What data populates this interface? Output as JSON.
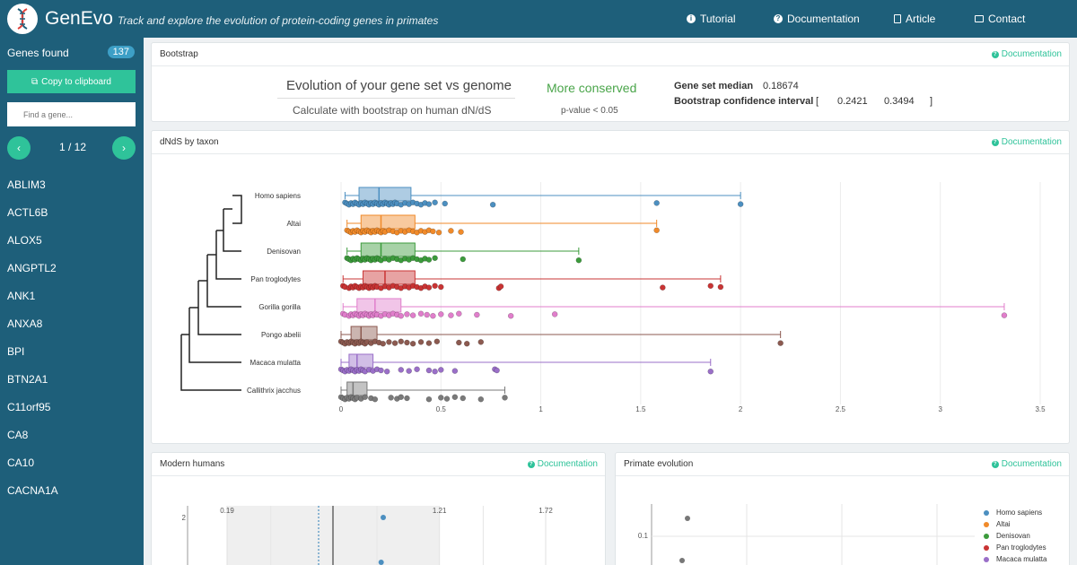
{
  "header": {
    "brand": "GenEvo",
    "tagline": "Track and explore the evolution of protein-coding genes in primates",
    "nav": [
      "Tutorial",
      "Documentation",
      "Article",
      "Contact"
    ]
  },
  "sidebar": {
    "genes_found_label": "Genes found",
    "genes_count": "137",
    "copy_label": "Copy to clipboard",
    "search_placeholder": "Find a gene...",
    "prev": "‹",
    "next": "›",
    "page": "1 / 12",
    "genes": [
      "ABLIM3",
      "ACTL6B",
      "ALOX5",
      "ANGPTL2",
      "ANK1",
      "ANXA8",
      "BPI",
      "BTN2A1",
      "C11orf95",
      "CA8",
      "CA10",
      "CACNA1A"
    ]
  },
  "bootstrap": {
    "title": "Bootstrap",
    "doc": "Documentation",
    "heading": "Evolution of your gene set vs genome",
    "subheading": "Calculate with bootstrap on human dN/dS",
    "verdict": "More conserved",
    "pvalue": "p-value < 0.05",
    "median_label": "Gene set median",
    "median_value": "0.18674",
    "ci_label": "Bootstrap confidence interval",
    "ci_open": "[",
    "ci_low": "0.2421",
    "ci_high": "0.3494",
    "ci_close": "]"
  },
  "dnds_panel": {
    "title": "dNdS by taxon",
    "doc": "Documentation"
  },
  "modern_panel": {
    "title": "Modern humans",
    "doc": "Documentation"
  },
  "primate_panel": {
    "title": "Primate evolution",
    "doc": "Documentation"
  },
  "colors": {
    "Homo sapiens": "#4c8fc0",
    "Altai": "#f08a2a",
    "Denisovan": "#3c9b3c",
    "Pan troglodytes": "#c93434",
    "Gorilla gorilla": "#e07ecb",
    "Pongo abelii": "#8c5a50",
    "Macaca mulatta": "#9a6fc8",
    "Callithrix jacchus": "#7a7a7a"
  },
  "chart_data": [
    {
      "type": "box",
      "title": "dNdS by taxon",
      "x_ticks": [
        "0",
        "0.5",
        "1",
        "1.5",
        "2",
        "2.5",
        "3",
        "3.5"
      ],
      "xlim": [
        0,
        3.5
      ],
      "grid": true,
      "series": [
        {
          "name": "Homo sapiens",
          "whisker_low": 0.02,
          "q1": 0.09,
          "median": 0.19,
          "q3": 0.35,
          "whisker_high": 2.0,
          "points": [
            0.02,
            0.03,
            0.04,
            0.05,
            0.06,
            0.07,
            0.08,
            0.09,
            0.1,
            0.11,
            0.12,
            0.13,
            0.14,
            0.15,
            0.16,
            0.17,
            0.18,
            0.19,
            0.2,
            0.21,
            0.22,
            0.23,
            0.24,
            0.25,
            0.26,
            0.27,
            0.28,
            0.3,
            0.32,
            0.34,
            0.36,
            0.38,
            0.4,
            0.42,
            0.44,
            0.47,
            0.52,
            0.76,
            1.58,
            2.0
          ]
        },
        {
          "name": "Altai",
          "whisker_low": 0.03,
          "q1": 0.1,
          "median": 0.2,
          "q3": 0.37,
          "whisker_high": 1.58,
          "points": [
            0.03,
            0.04,
            0.05,
            0.06,
            0.07,
            0.08,
            0.09,
            0.1,
            0.11,
            0.12,
            0.13,
            0.14,
            0.15,
            0.16,
            0.17,
            0.18,
            0.19,
            0.2,
            0.21,
            0.22,
            0.24,
            0.26,
            0.28,
            0.3,
            0.32,
            0.34,
            0.36,
            0.38,
            0.4,
            0.42,
            0.44,
            0.46,
            0.49,
            0.55,
            0.6,
            1.58
          ]
        },
        {
          "name": "Denisovan",
          "whisker_low": 0.03,
          "q1": 0.1,
          "median": 0.2,
          "q3": 0.37,
          "whisker_high": 1.19,
          "points": [
            0.03,
            0.04,
            0.05,
            0.06,
            0.07,
            0.08,
            0.09,
            0.1,
            0.11,
            0.12,
            0.13,
            0.14,
            0.15,
            0.16,
            0.17,
            0.18,
            0.19,
            0.2,
            0.22,
            0.24,
            0.26,
            0.28,
            0.3,
            0.32,
            0.34,
            0.36,
            0.38,
            0.4,
            0.42,
            0.44,
            0.47,
            0.61,
            1.19
          ]
        },
        {
          "name": "Pan troglodytes",
          "whisker_low": 0.01,
          "q1": 0.11,
          "median": 0.22,
          "q3": 0.37,
          "whisker_high": 1.9,
          "points": [
            0.01,
            0.02,
            0.04,
            0.05,
            0.06,
            0.07,
            0.08,
            0.09,
            0.1,
            0.11,
            0.12,
            0.13,
            0.14,
            0.15,
            0.16,
            0.17,
            0.18,
            0.2,
            0.22,
            0.24,
            0.26,
            0.28,
            0.3,
            0.32,
            0.34,
            0.36,
            0.38,
            0.4,
            0.42,
            0.44,
            0.47,
            0.5,
            0.79,
            0.8,
            1.61,
            1.85,
            1.9
          ]
        },
        {
          "name": "Gorilla gorilla",
          "whisker_low": 0.01,
          "q1": 0.08,
          "median": 0.17,
          "q3": 0.3,
          "whisker_high": 3.32,
          "points": [
            0.01,
            0.02,
            0.04,
            0.05,
            0.06,
            0.07,
            0.08,
            0.09,
            0.1,
            0.11,
            0.12,
            0.13,
            0.14,
            0.15,
            0.16,
            0.17,
            0.18,
            0.2,
            0.22,
            0.24,
            0.26,
            0.28,
            0.3,
            0.33,
            0.36,
            0.4,
            0.43,
            0.46,
            0.5,
            0.55,
            0.59,
            0.68,
            0.85,
            1.07,
            3.32
          ]
        },
        {
          "name": "Pongo abelii",
          "whisker_low": 0.0,
          "q1": 0.05,
          "median": 0.1,
          "q3": 0.18,
          "whisker_high": 2.2,
          "points": [
            0.0,
            0.01,
            0.02,
            0.03,
            0.04,
            0.05,
            0.06,
            0.07,
            0.08,
            0.09,
            0.1,
            0.11,
            0.12,
            0.13,
            0.15,
            0.17,
            0.19,
            0.21,
            0.24,
            0.27,
            0.3,
            0.33,
            0.36,
            0.4,
            0.44,
            0.48,
            0.59,
            0.63,
            0.7,
            2.2
          ]
        },
        {
          "name": "Macaca mulatta",
          "whisker_low": 0.0,
          "q1": 0.04,
          "median": 0.08,
          "q3": 0.16,
          "whisker_high": 1.85,
          "points": [
            0.0,
            0.01,
            0.02,
            0.03,
            0.04,
            0.05,
            0.06,
            0.07,
            0.08,
            0.09,
            0.1,
            0.11,
            0.12,
            0.14,
            0.16,
            0.18,
            0.2,
            0.23,
            0.3,
            0.34,
            0.38,
            0.44,
            0.47,
            0.5,
            0.57,
            0.77,
            0.78,
            1.85
          ]
        },
        {
          "name": "Callithrix jacchus",
          "whisker_low": 0.0,
          "q1": 0.03,
          "median": 0.06,
          "q3": 0.13,
          "whisker_high": 0.82,
          "points": [
            0.0,
            0.01,
            0.02,
            0.03,
            0.04,
            0.05,
            0.06,
            0.07,
            0.08,
            0.1,
            0.12,
            0.15,
            0.17,
            0.25,
            0.28,
            0.3,
            0.33,
            0.44,
            0.5,
            0.53,
            0.57,
            0.61,
            0.7,
            0.82
          ]
        }
      ]
    },
    {
      "type": "scatter",
      "title": "Modern humans",
      "x_ticks": [
        "0.19",
        "1.21",
        "1.72"
      ],
      "y_ticks": [
        "2"
      ],
      "points": [
        {
          "x": 0.94,
          "y": 2.0
        },
        {
          "x": 0.93,
          "y": 1.0
        }
      ]
    },
    {
      "type": "scatter",
      "title": "Primate evolution",
      "y_ticks": [
        "0.1"
      ],
      "legend": [
        "Homo sapiens",
        "Altai",
        "Denisovan",
        "Pan troglodytes",
        "Macaca mulatta"
      ],
      "legend_position": "right"
    }
  ]
}
